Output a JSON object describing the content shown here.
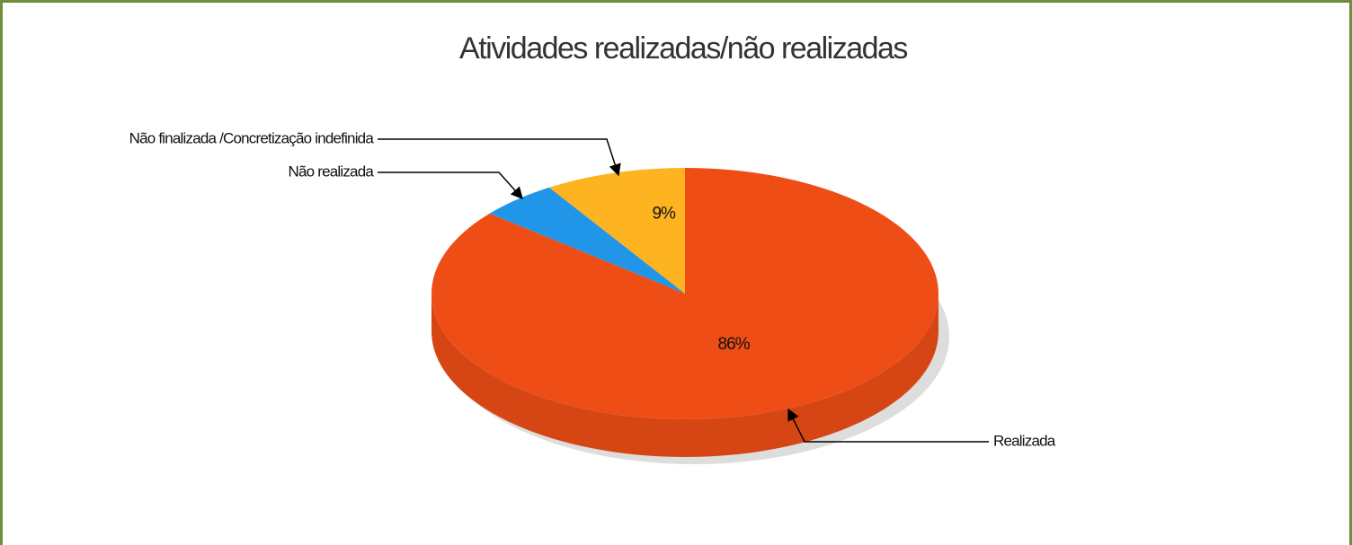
{
  "chart_data": {
    "type": "pie",
    "title": "Atividades realizadas/não realizadas",
    "categories": [
      "Realizada",
      "Não realizada",
      "Não finalizada /Concretização indefinida"
    ],
    "values": [
      86,
      5,
      9
    ],
    "value_labels": [
      "86%",
      "5%",
      "9%"
    ],
    "colors": [
      "#ee4e16",
      "#2196e8",
      "#fdb420"
    ]
  }
}
